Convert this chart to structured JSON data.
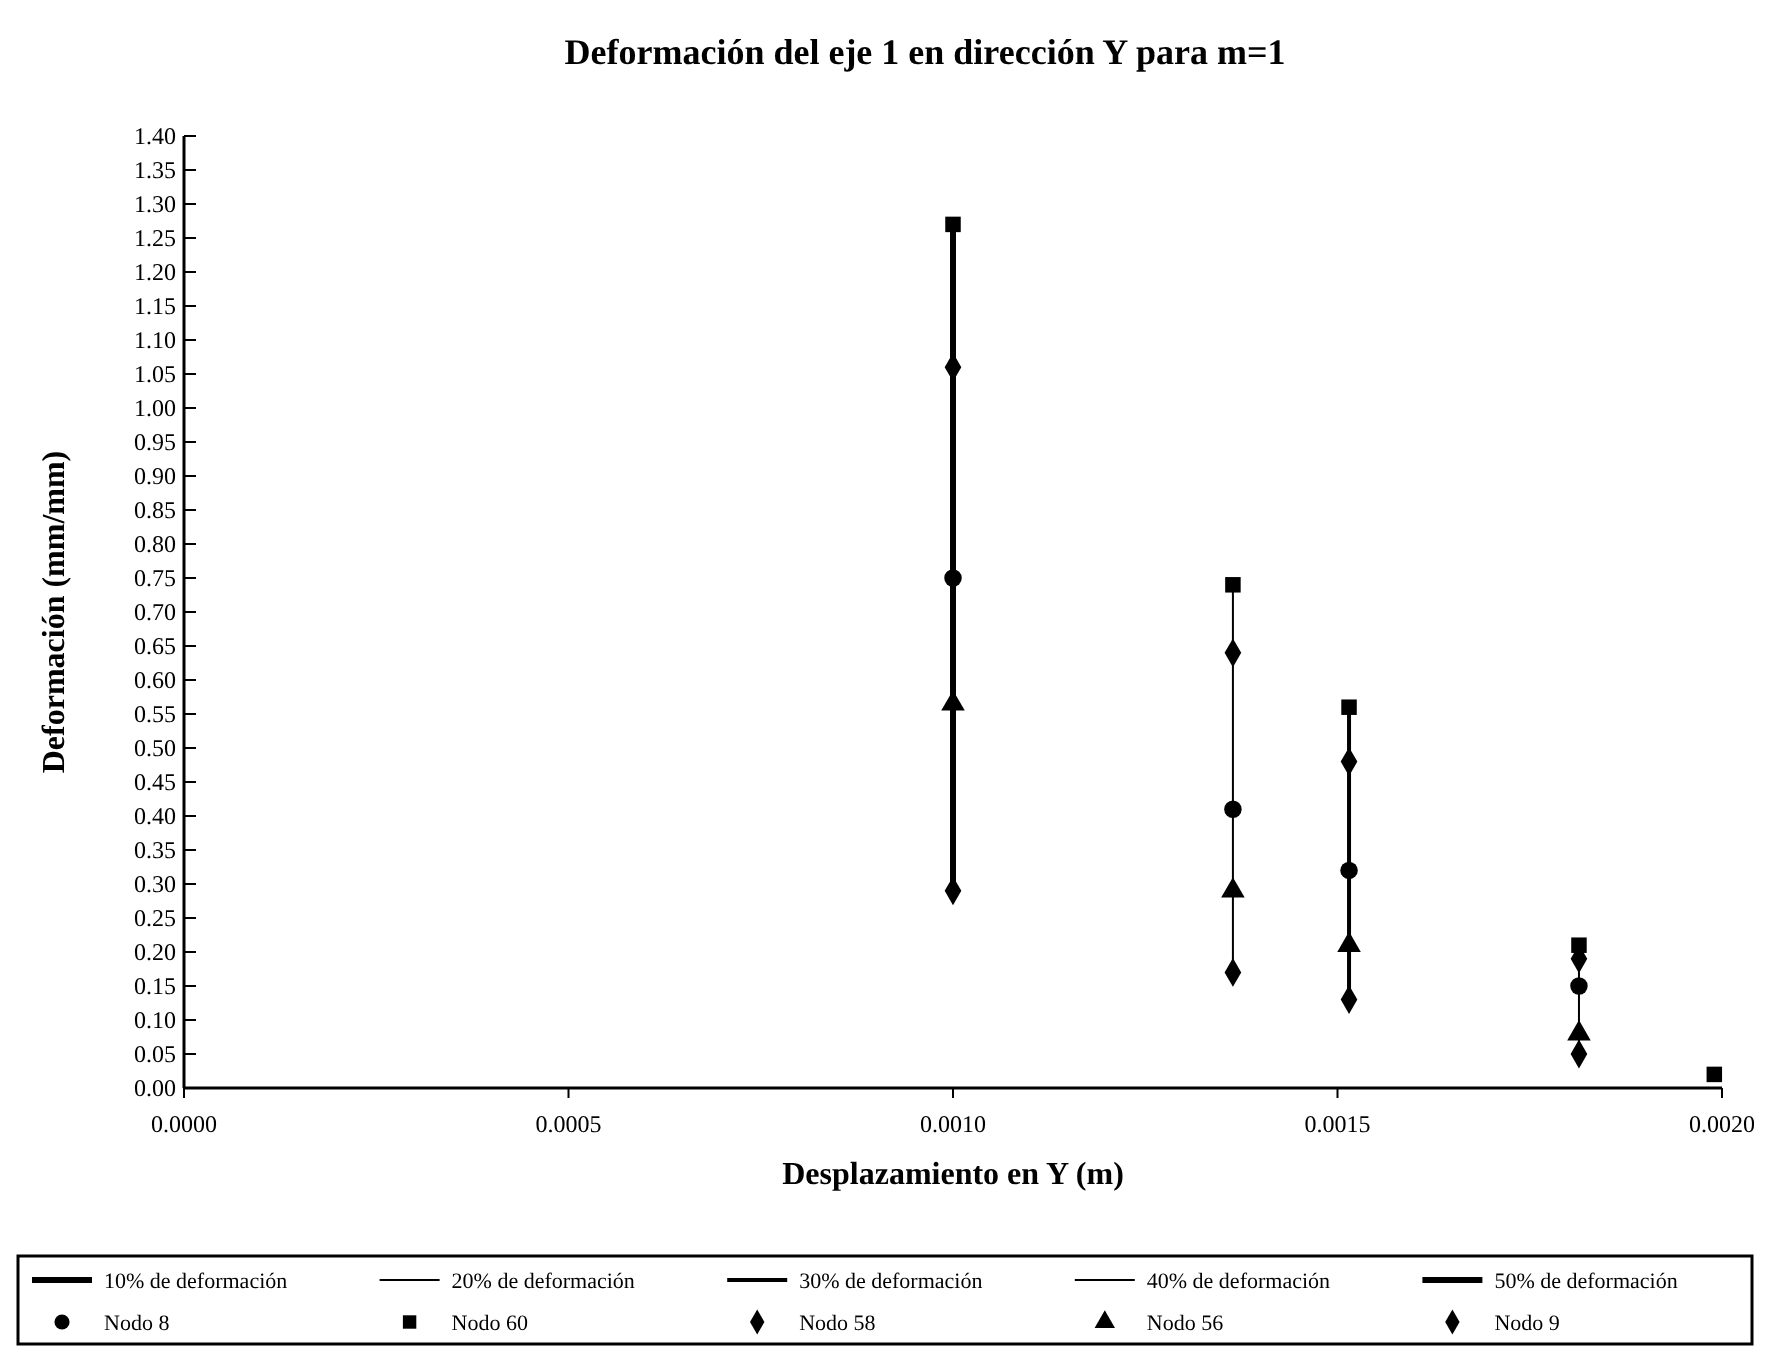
{
  "chart_data": {
    "type": "scatter",
    "title": "Deformación del eje 1 en dirección Y para m=1",
    "xlabel": "Desplazamiento en Y (m)",
    "ylabel": "Deformación (mm/mm)",
    "xlim": [
      0,
      0.002
    ],
    "xticks": [
      {
        "value": 0,
        "label": "0.0000"
      },
      {
        "value": 0.0005,
        "label": "0.0005"
      },
      {
        "value": 0.001,
        "label": "0.0010"
      },
      {
        "value": 0.0015,
        "label": "0.0015"
      },
      {
        "value": 0.002,
        "label": "0.0020"
      }
    ],
    "ylim": [
      0,
      1.4
    ],
    "yticks": [
      {
        "value": 0,
        "label": "0.00"
      },
      {
        "value": 0.05,
        "label": "0.05"
      },
      {
        "value": 0.1,
        "label": "0.10"
      },
      {
        "value": 0.15,
        "label": "0.15"
      },
      {
        "value": 0.2,
        "label": "0.20"
      },
      {
        "value": 0.25,
        "label": "0.25"
      },
      {
        "value": 0.3,
        "label": "0.30"
      },
      {
        "value": 0.35,
        "label": "0.35"
      },
      {
        "value": 0.4,
        "label": "0.40"
      },
      {
        "value": 0.45,
        "label": "0.45"
      },
      {
        "value": 0.5,
        "label": "0.50"
      },
      {
        "value": 0.55,
        "label": "0.55"
      },
      {
        "value": 0.6,
        "label": "0.60"
      },
      {
        "value": 0.65,
        "label": "0.65"
      },
      {
        "value": 0.7,
        "label": "0.70"
      },
      {
        "value": 0.75,
        "label": "0.75"
      },
      {
        "value": 0.8,
        "label": "0.80"
      },
      {
        "value": 0.85,
        "label": "0.85"
      },
      {
        "value": 0.9,
        "label": "0.90"
      },
      {
        "value": 0.95,
        "label": "0.95"
      },
      {
        "value": 1,
        "label": "1.00"
      },
      {
        "value": 1.05,
        "label": "1.05"
      },
      {
        "value": 1.1,
        "label": "1.10"
      },
      {
        "value": 1.15,
        "label": "1.15"
      },
      {
        "value": 1.2,
        "label": "1.20"
      },
      {
        "value": 1.25,
        "label": "1.25"
      },
      {
        "value": 1.3,
        "label": "1.30"
      },
      {
        "value": 1.35,
        "label": "1.35"
      },
      {
        "value": 1.4,
        "label": "1.40"
      }
    ],
    "legend": "bottom",
    "grid": false,
    "series": [
      {
        "name": "10% de deformación",
        "type": "line",
        "marker": "none",
        "color": "#000000",
        "x": [
          0.001,
          0.001,
          0.001,
          0.001,
          0.001
        ],
        "values": [
          0.75,
          1.27,
          1.06,
          0.565,
          0.29
        ]
      },
      {
        "name": "20% de deformación",
        "type": "line",
        "marker": "none",
        "color": "#000000",
        "x": [
          0.001364,
          0.001364,
          0.001364,
          0.001364,
          0.001364
        ],
        "values": [
          0.41,
          0.74,
          0.64,
          0.29,
          0.17
        ]
      },
      {
        "name": "30% de deformación",
        "type": "line",
        "marker": "none",
        "color": "#000000",
        "x": [
          0.001515,
          0.001515,
          0.001515,
          0.001515,
          0.001515
        ],
        "values": [
          0.32,
          0.56,
          0.48,
          0.21,
          0.13
        ]
      },
      {
        "name": "40% de deformación",
        "type": "line",
        "marker": "none",
        "color": "#000000",
        "x": [
          0.001814,
          0.001814,
          0.001814,
          0.001814,
          0.001814
        ],
        "values": [
          0.15,
          0.21,
          0.19,
          0.08,
          0.05
        ]
      },
      {
        "name": "50% de deformación",
        "type": "line",
        "marker": "none",
        "color": "#000000",
        "line_style": "solid"
      },
      {
        "name": "Nodo 8",
        "marker": "circle",
        "color": "#000000",
        "x": [
          0.001,
          0.001364,
          0.001515,
          0.001814
        ],
        "values": [
          0.75,
          0.41,
          0.32,
          0.15
        ]
      },
      {
        "name": "Nodo 60",
        "marker": "square",
        "color": "#000000",
        "x": [
          0.001,
          0.001364,
          0.001515,
          0.001814,
          0.00199
        ],
        "values": [
          1.27,
          0.74,
          0.56,
          0.21,
          0.02
        ]
      },
      {
        "name": "Nodo 58",
        "marker": "diamond",
        "color": "#000000",
        "x": [
          0.001,
          0.001364,
          0.001515,
          0.001814
        ],
        "values": [
          1.06,
          0.64,
          0.48,
          0.19
        ]
      },
      {
        "name": "Nodo 56",
        "marker": "triangle",
        "color": "#000000",
        "x": [
          0.001,
          0.001364,
          0.001515,
          0.001814
        ],
        "values": [
          0.565,
          0.29,
          0.21,
          0.08
        ]
      },
      {
        "name": "Nodo 9",
        "marker": "diamond",
        "color": "#000000",
        "x": [
          0.001,
          0.001364,
          0.001515,
          0.001814
        ],
        "values": [
          0.29,
          0.17,
          0.13,
          0.05
        ]
      }
    ]
  }
}
